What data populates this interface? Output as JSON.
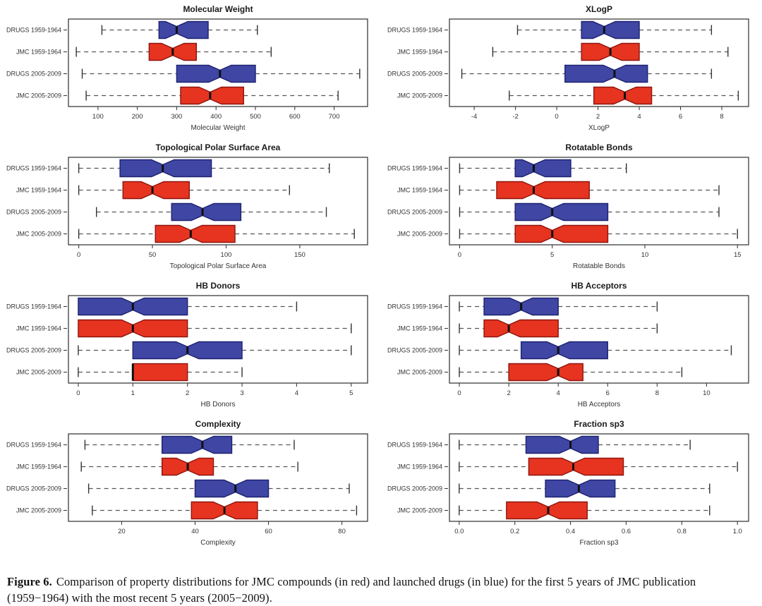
{
  "page": {
    "background": "#ffffff"
  },
  "colors": {
    "blue_fill": "#3f46a3",
    "blue_stroke": "#1e2270",
    "red_fill": "#e63420",
    "red_stroke": "#8e150e",
    "median": "#101010",
    "whisker": "#555555",
    "cap": "#333333",
    "frame": "#3c3c3c",
    "label_text": "#333333",
    "title_text": "#1a1a1a"
  },
  "categories": [
    "DRUGS 1959-1964",
    "JMC 1959-1964",
    "DRUGS 2005-2009",
    "JMC 2005-2009"
  ],
  "chart_data": [
    {
      "type": "boxplot",
      "orientation": "horizontal",
      "notched": true,
      "title": "Molecular Weight",
      "xlabel": "Molecular Weight",
      "xlim": [
        25,
        785
      ],
      "xtick_values": [
        100,
        200,
        300,
        400,
        500,
        600,
        700
      ],
      "xtick_labels": [
        "100",
        "200",
        "300",
        "400",
        "500",
        "600",
        "700"
      ],
      "boxes": [
        {
          "label": "DRUGS 1959-1964",
          "color": "blue",
          "whisker_low": 110,
          "q1": 255,
          "median": 300,
          "q3": 380,
          "whisker_high": 505
        },
        {
          "label": "JMC 1959-1964",
          "color": "red",
          "whisker_low": 45,
          "q1": 230,
          "median": 290,
          "q3": 350,
          "whisker_high": 540
        },
        {
          "label": "DRUGS 2005-2009",
          "color": "blue",
          "whisker_low": 60,
          "q1": 300,
          "median": 410,
          "q3": 500,
          "whisker_high": 765
        },
        {
          "label": "JMC 2005-2009",
          "color": "red",
          "whisker_low": 70,
          "q1": 310,
          "median": 385,
          "q3": 470,
          "whisker_high": 710
        }
      ]
    },
    {
      "type": "boxplot",
      "orientation": "horizontal",
      "notched": true,
      "title": "XLogP",
      "xlabel": "XLogP",
      "xlim": [
        -5.2,
        9.3
      ],
      "xtick_values": [
        -4,
        -2,
        0,
        2,
        4,
        6,
        8
      ],
      "xtick_labels": [
        "-4",
        "-2",
        "0",
        "2",
        "4",
        "6",
        "8"
      ],
      "boxes": [
        {
          "label": "DRUGS 1959-1964",
          "color": "blue",
          "whisker_low": -1.9,
          "q1": 1.2,
          "median": 2.3,
          "q3": 4.0,
          "whisker_high": 7.5
        },
        {
          "label": "JMC 1959-1964",
          "color": "red",
          "whisker_low": -3.1,
          "q1": 1.2,
          "median": 2.6,
          "q3": 4.0,
          "whisker_high": 8.3
        },
        {
          "label": "DRUGS 2005-2009",
          "color": "blue",
          "whisker_low": -4.6,
          "q1": 0.4,
          "median": 2.8,
          "q3": 4.4,
          "whisker_high": 7.5
        },
        {
          "label": "JMC 2005-2009",
          "color": "red",
          "whisker_low": -2.3,
          "q1": 1.8,
          "median": 3.3,
          "q3": 4.6,
          "whisker_high": 8.8
        }
      ]
    },
    {
      "type": "boxplot",
      "orientation": "horizontal",
      "notched": true,
      "title": "Topological Polar Surface Area",
      "xlabel": "Topological Polar Surface Area",
      "xlim": [
        -7,
        196
      ],
      "xtick_values": [
        0,
        50,
        100,
        150
      ],
      "xtick_labels": [
        "0",
        "50",
        "100",
        "150"
      ],
      "boxes": [
        {
          "label": "DRUGS 1959-1964",
          "color": "blue",
          "whisker_low": 0,
          "q1": 28,
          "median": 57,
          "q3": 90,
          "whisker_high": 170
        },
        {
          "label": "JMC 1959-1964",
          "color": "red",
          "whisker_low": 0,
          "q1": 30,
          "median": 50,
          "q3": 75,
          "whisker_high": 143
        },
        {
          "label": "DRUGS 2005-2009",
          "color": "blue",
          "whisker_low": 12,
          "q1": 63,
          "median": 84,
          "q3": 110,
          "whisker_high": 168
        },
        {
          "label": "JMC 2005-2009",
          "color": "red",
          "whisker_low": 0,
          "q1": 52,
          "median": 76,
          "q3": 106,
          "whisker_high": 187
        }
      ]
    },
    {
      "type": "boxplot",
      "orientation": "horizontal",
      "notched": true,
      "title": "Rotatable Bonds",
      "xlabel": "Rotatable Bonds",
      "xlim": [
        -0.55,
        15.6
      ],
      "xtick_values": [
        0,
        5,
        10,
        15
      ],
      "xtick_labels": [
        "0",
        "5",
        "10",
        "15"
      ],
      "boxes": [
        {
          "label": "DRUGS 1959-1964",
          "color": "blue",
          "whisker_low": 0,
          "q1": 3,
          "median": 4,
          "q3": 6,
          "whisker_high": 9
        },
        {
          "label": "JMC 1959-1964",
          "color": "red",
          "whisker_low": 0,
          "q1": 2,
          "median": 4,
          "q3": 7,
          "whisker_high": 14
        },
        {
          "label": "DRUGS 2005-2009",
          "color": "blue",
          "whisker_low": 0,
          "q1": 3,
          "median": 5,
          "q3": 8,
          "whisker_high": 14
        },
        {
          "label": "JMC 2005-2009",
          "color": "red",
          "whisker_low": 0,
          "q1": 3,
          "median": 5,
          "q3": 8,
          "whisker_high": 15
        }
      ]
    },
    {
      "type": "boxplot",
      "orientation": "horizontal",
      "notched": true,
      "title": "HB Donors",
      "xlabel": "HB Donors",
      "xlim": [
        -0.18,
        5.3
      ],
      "xtick_values": [
        0,
        1,
        2,
        3,
        4,
        5
      ],
      "xtick_labels": [
        "0",
        "1",
        "2",
        "3",
        "4",
        "5"
      ],
      "boxes": [
        {
          "label": "DRUGS 1959-1964",
          "color": "blue",
          "whisker_low": 0,
          "q1": 0,
          "median": 1,
          "q3": 2,
          "whisker_high": 4
        },
        {
          "label": "JMC 1959-1964",
          "color": "red",
          "whisker_low": 0,
          "q1": 0,
          "median": 1,
          "q3": 2,
          "whisker_high": 5
        },
        {
          "label": "DRUGS 2005-2009",
          "color": "blue",
          "whisker_low": 0,
          "q1": 1,
          "median": 2,
          "q3": 3,
          "whisker_high": 5
        },
        {
          "label": "JMC 2005-2009",
          "color": "red",
          "whisker_low": 0,
          "q1": 1,
          "median": 1,
          "q3": 2,
          "whisker_high": 3
        }
      ]
    },
    {
      "type": "boxplot",
      "orientation": "horizontal",
      "notched": true,
      "title": "HB Acceptors",
      "xlabel": "HB Acceptors",
      "xlim": [
        -0.4,
        11.7
      ],
      "xtick_values": [
        0,
        2,
        4,
        6,
        8,
        10
      ],
      "xtick_labels": [
        "0",
        "2",
        "4",
        "6",
        "8",
        "10"
      ],
      "boxes": [
        {
          "label": "DRUGS 1959-1964",
          "color": "blue",
          "whisker_low": 0,
          "q1": 1,
          "median": 2.5,
          "q3": 4,
          "whisker_high": 8
        },
        {
          "label": "JMC 1959-1964",
          "color": "red",
          "whisker_low": 0,
          "q1": 1,
          "median": 2,
          "q3": 4,
          "whisker_high": 8
        },
        {
          "label": "DRUGS 2005-2009",
          "color": "blue",
          "whisker_low": 0,
          "q1": 2.5,
          "median": 4,
          "q3": 6,
          "whisker_high": 11
        },
        {
          "label": "JMC 2005-2009",
          "color": "red",
          "whisker_low": 0,
          "q1": 2,
          "median": 4,
          "q3": 5,
          "whisker_high": 9
        }
      ]
    },
    {
      "type": "boxplot",
      "orientation": "horizontal",
      "notched": true,
      "title": "Complexity",
      "xlabel": "Complexity",
      "xlim": [
        5.5,
        87
      ],
      "xtick_values": [
        20,
        40,
        60,
        80
      ],
      "xtick_labels": [
        "20",
        "40",
        "60",
        "80"
      ],
      "boxes": [
        {
          "label": "DRUGS 1959-1964",
          "color": "blue",
          "whisker_low": 10,
          "q1": 31,
          "median": 42,
          "q3": 50,
          "whisker_high": 67
        },
        {
          "label": "JMC 1959-1964",
          "color": "red",
          "whisker_low": 9,
          "q1": 31,
          "median": 38,
          "q3": 45,
          "whisker_high": 68
        },
        {
          "label": "DRUGS 2005-2009",
          "color": "blue",
          "whisker_low": 11,
          "q1": 40,
          "median": 51,
          "q3": 60,
          "whisker_high": 82
        },
        {
          "label": "JMC 2005-2009",
          "color": "red",
          "whisker_low": 12,
          "q1": 39,
          "median": 48,
          "q3": 57,
          "whisker_high": 84
        }
      ]
    },
    {
      "type": "boxplot",
      "orientation": "horizontal",
      "notched": true,
      "title": "Fraction sp3",
      "xlabel": "Fraction sp3",
      "xlim": [
        -0.035,
        1.04
      ],
      "xtick_values": [
        0.0,
        0.2,
        0.4,
        0.6,
        0.8,
        1.0
      ],
      "xtick_labels": [
        "0.0",
        "0.2",
        "0.4",
        "0.6",
        "0.8",
        "1.0"
      ],
      "boxes": [
        {
          "label": "DRUGS 1959-1964",
          "color": "blue",
          "whisker_low": 0,
          "q1": 0.24,
          "median": 0.4,
          "q3": 0.5,
          "whisker_high": 0.83
        },
        {
          "label": "JMC 1959-1964",
          "color": "red",
          "whisker_low": 0,
          "q1": 0.25,
          "median": 0.41,
          "q3": 0.59,
          "whisker_high": 1.0
        },
        {
          "label": "DRUGS 2005-2009",
          "color": "blue",
          "whisker_low": 0,
          "q1": 0.31,
          "median": 0.43,
          "q3": 0.56,
          "whisker_high": 0.9
        },
        {
          "label": "JMC 2005-2009",
          "color": "red",
          "whisker_low": 0,
          "q1": 0.17,
          "median": 0.32,
          "q3": 0.46,
          "whisker_high": 0.9
        }
      ]
    }
  ],
  "caption": {
    "label": "Figure 6.",
    "text": "Comparison of property distributions for JMC compounds (in red) and launched drugs (in blue) for the first 5 years of JMC publication (1959−1964) with the most recent 5 years (2005−2009)."
  }
}
